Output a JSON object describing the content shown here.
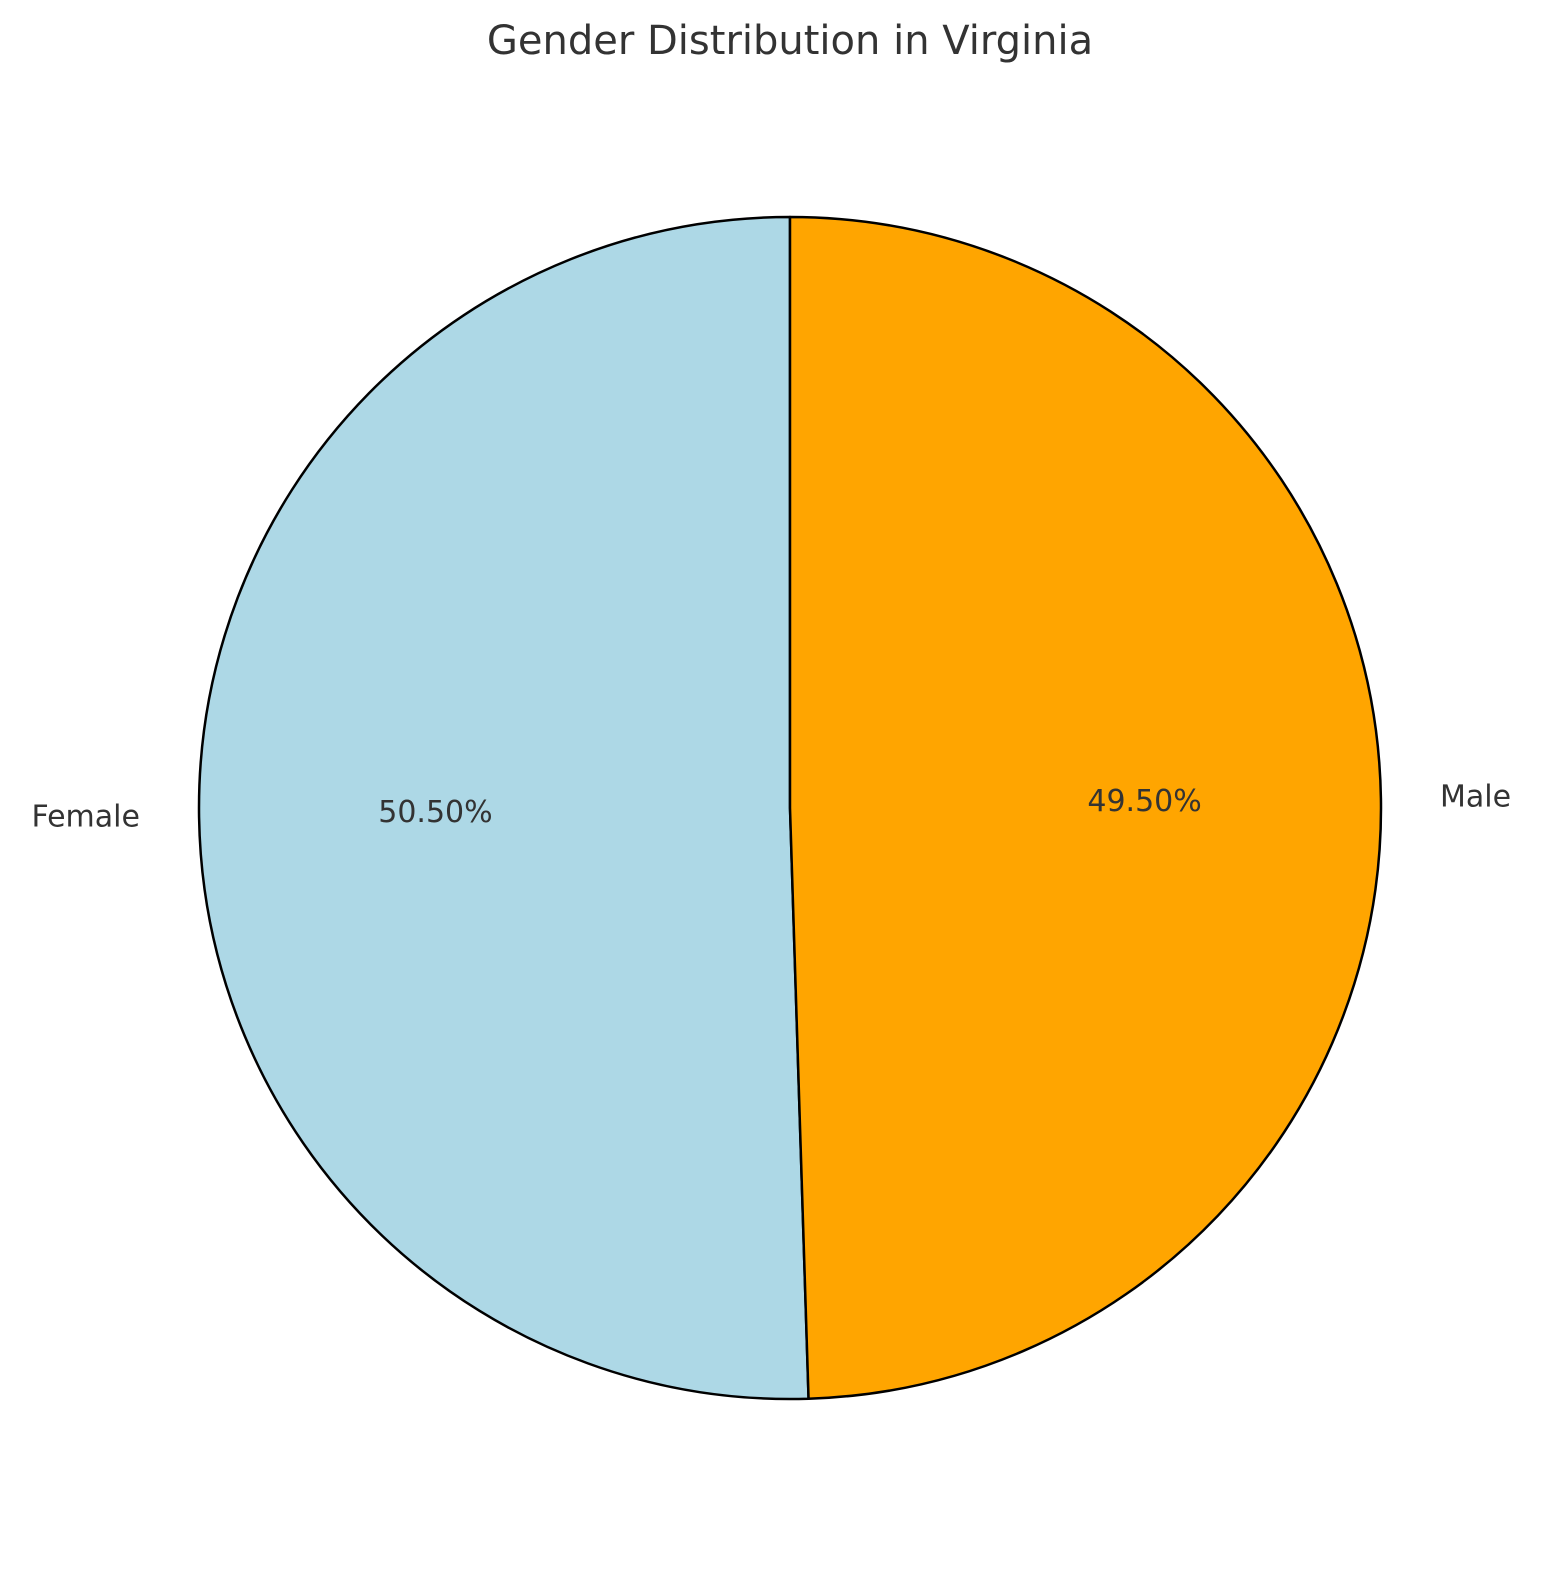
{
  "chart_data": {
    "type": "pie",
    "title": "Gender Distribution in Virginia",
    "categories": [
      "Female",
      "Male"
    ],
    "values": [
      50.5,
      49.5
    ],
    "value_labels": [
      "50.50%",
      "49.50%"
    ],
    "colors": [
      "#add8e6",
      "#ffa500"
    ],
    "edge_color": "#000000",
    "start": "top",
    "direction": "counterclockwise",
    "legend": false
  }
}
